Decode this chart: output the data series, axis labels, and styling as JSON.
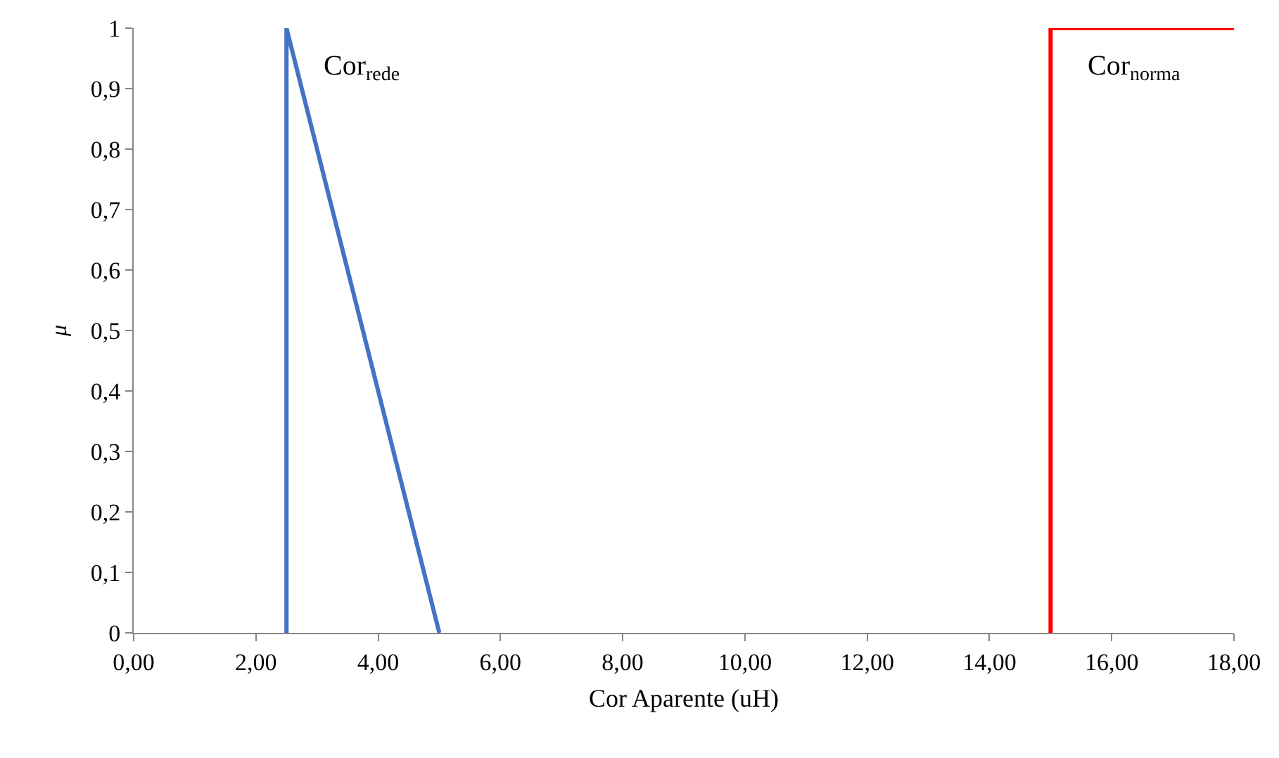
{
  "chart_data": {
    "type": "line",
    "xlabel": "Cor Aparente (uH)",
    "ylabel": "μ",
    "series": [
      {
        "name": "Cor$_{rede}$",
        "color": "#4472c4",
        "x": [
          2.5,
          2.5,
          5
        ],
        "values": [
          0,
          1,
          0
        ]
      },
      {
        "name": "Cor$_{norma}$",
        "color": "#ff0000",
        "x": [
          15,
          15,
          18
        ],
        "values": [
          0,
          1,
          1
        ]
      }
    ],
    "xlim": [
      0,
      18
    ],
    "xticks": [
      {
        "value": 0,
        "label": "0,00"
      },
      {
        "value": 2,
        "label": "2,00"
      },
      {
        "value": 4,
        "label": "4,00"
      },
      {
        "value": 6,
        "label": "6,00"
      },
      {
        "value": 8,
        "label": "8,00"
      },
      {
        "value": 10,
        "label": "10,00"
      },
      {
        "value": 12,
        "label": "12,00"
      },
      {
        "value": 14,
        "label": "14,00"
      },
      {
        "value": 16,
        "label": "16,00"
      },
      {
        "value": 18,
        "label": "18,00"
      }
    ],
    "ylim": [
      0,
      1
    ],
    "yticks": [
      0,
      {
        "value": 0.1,
        "label": "0,1"
      },
      {
        "value": 0.2,
        "label": "0,2"
      },
      {
        "value": 0.3,
        "label": "0,3"
      },
      {
        "value": 0.4,
        "label": "0,4"
      },
      {
        "value": 0.5,
        "label": "0,5"
      },
      {
        "value": 0.6,
        "label": "0,6"
      },
      {
        "value": 0.7,
        "label": "0,7"
      },
      {
        "value": 0.8,
        "label": "0,8"
      },
      {
        "value": 0.9,
        "label": "0,9"
      },
      1
    ],
    "grid": false,
    "legend": false,
    "marker": "none",
    "line_style": "solid"
  }
}
